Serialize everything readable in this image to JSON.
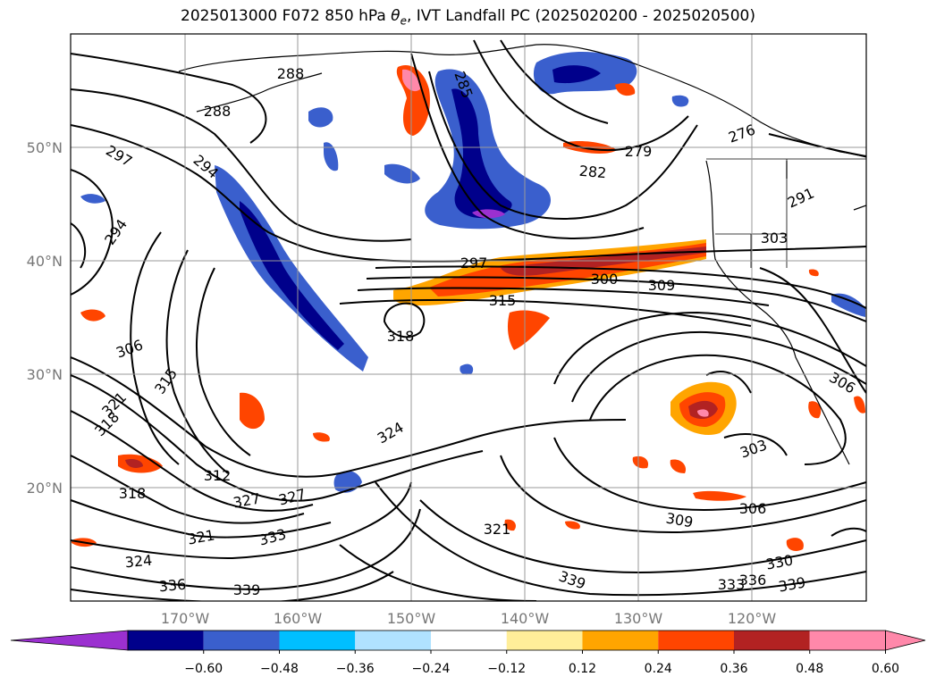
{
  "title": {
    "prefix": "2025013000 F072 850 hPa ",
    "symbol": "θ",
    "subscript": "e",
    "suffix": ", IVT Landfall PC (2025020200 - 2025020500)"
  },
  "map_axes": {
    "lon_labels": [
      "170°W",
      "160°W",
      "150°W",
      "140°W",
      "130°W",
      "120°W"
    ],
    "lat_labels": [
      "50°N",
      "40°N",
      "30°N",
      "20°N"
    ]
  },
  "contour_labels": [
    "288",
    "288",
    "285",
    "297",
    "294",
    "294",
    "279",
    "282",
    "297",
    "300",
    "309",
    "315",
    "318",
    "306",
    "315",
    "321",
    "318",
    "312",
    "327",
    "327",
    "324",
    "318",
    "321",
    "333",
    "324",
    "336",
    "339",
    "321",
    "339",
    "303",
    "306",
    "309",
    "330",
    "333",
    "336",
    "339",
    "303",
    "291",
    "276",
    "306"
  ],
  "colorbar": {
    "tick_labels": [
      "−0.60",
      "−0.48",
      "−0.36",
      "−0.24",
      "−0.12",
      "0.12",
      "0.24",
      "0.36",
      "0.48",
      "0.60"
    ],
    "colors": [
      "#9b30d0",
      "#00008b",
      "#3a5fcd",
      "#00bfff",
      "#b0e2ff",
      "#ffffff",
      "#ffee99",
      "#ffa500",
      "#ff4500",
      "#b22222",
      "#ff88aa",
      "#ff88aa"
    ],
    "extend": "both"
  }
}
